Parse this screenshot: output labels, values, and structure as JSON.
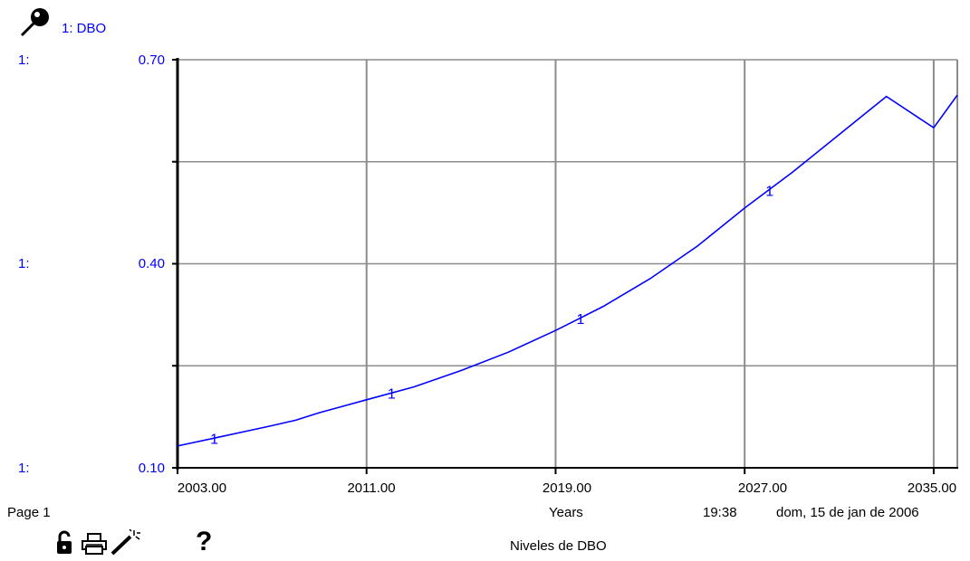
{
  "legend": {
    "icon": "pin-icon",
    "series_label": "1: DBO"
  },
  "yaxis": {
    "prefix": "1:",
    "labels": [
      "0.70",
      "0.40",
      "0.10"
    ]
  },
  "footer": {
    "page": "Page 1",
    "xlabel": "Years",
    "time": "19:38",
    "date": "dom, 15 de jan de 2006",
    "title": "Niveles de DBO"
  },
  "toolbar": {
    "icons": [
      "lock-icon",
      "print-icon",
      "magic-wand-icon",
      "help-icon"
    ]
  },
  "colors": {
    "series": "#0000ff",
    "grid": "#8c8c8c",
    "axis": "#000000"
  },
  "chart_data": {
    "type": "line",
    "x": [
      2003,
      2005,
      2007,
      2008,
      2009,
      2011,
      2013,
      2015,
      2017,
      2019,
      2021,
      2023,
      2025,
      2027,
      2029,
      2031,
      2033,
      2035,
      2036
    ],
    "series": [
      {
        "name": "DBO",
        "marker_label": "1",
        "values": [
          0.132,
          0.147,
          0.162,
          0.17,
          0.181,
          0.2,
          0.219,
          0.243,
          0.27,
          0.302,
          0.337,
          0.378,
          0.426,
          0.482,
          0.534,
          0.59,
          0.646,
          0.6,
          0.648
        ]
      }
    ],
    "xticks": [
      "2003.00",
      "2011.00",
      "2019.00",
      "2027.00",
      "2035.00"
    ],
    "xlim": [
      2003,
      2036
    ],
    "ylim": [
      0.1,
      0.7
    ],
    "ytick_values": [
      0.7,
      0.4,
      0.1
    ],
    "xlabel": "Years",
    "title": "Niveles de DBO",
    "grid": true
  }
}
